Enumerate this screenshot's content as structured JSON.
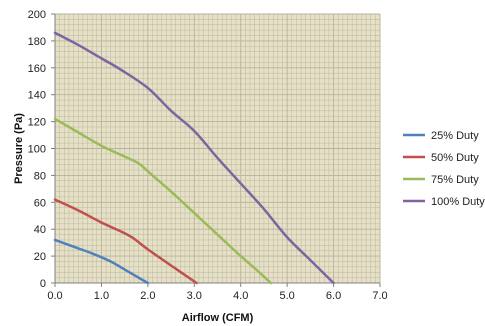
{
  "chart_data": {
    "type": "line",
    "title": "",
    "xlabel": "Airflow (CFM)",
    "ylabel": "Pressure (Pa)",
    "xlim": [
      0,
      7
    ],
    "ylim": [
      0,
      200
    ],
    "x_ticks": [
      "0.0",
      "1.0",
      "2.0",
      "3.0",
      "4.0",
      "5.0",
      "6.0",
      "7.0"
    ],
    "y_ticks": [
      "0",
      "20",
      "40",
      "60",
      "80",
      "100",
      "120",
      "140",
      "160",
      "180",
      "200"
    ],
    "grid": true,
    "plot_background": "#e6e1c6",
    "grid_color": "#b7b29c",
    "legend_position": "right",
    "series": [
      {
        "name": "25% Duty",
        "color": "#4f81bd",
        "points": [
          [
            0,
            32
          ],
          [
            0.4,
            27
          ],
          [
            0.8,
            22
          ],
          [
            1.2,
            16
          ],
          [
            1.5,
            10
          ],
          [
            1.8,
            4
          ],
          [
            2.0,
            0
          ]
        ]
      },
      {
        "name": "50% Duty",
        "color": "#c0504d",
        "points": [
          [
            0,
            62
          ],
          [
            0.5,
            54
          ],
          [
            1.0,
            45
          ],
          [
            1.5,
            37
          ],
          [
            1.7,
            33
          ],
          [
            2.0,
            25
          ],
          [
            2.5,
            13
          ],
          [
            3.05,
            0
          ]
        ]
      },
      {
        "name": "75% Duty",
        "color": "#9bbb59",
        "points": [
          [
            0,
            122
          ],
          [
            0.5,
            112
          ],
          [
            1.0,
            102
          ],
          [
            1.5,
            94
          ],
          [
            1.8,
            89
          ],
          [
            2.0,
            83
          ],
          [
            2.5,
            68
          ],
          [
            3.0,
            52
          ],
          [
            3.5,
            36
          ],
          [
            4.0,
            20
          ],
          [
            4.3,
            11
          ],
          [
            4.65,
            0
          ]
        ]
      },
      {
        "name": "100% Duty",
        "color": "#8064a2",
        "points": [
          [
            0,
            186
          ],
          [
            0.5,
            177
          ],
          [
            1.0,
            167
          ],
          [
            1.4,
            159
          ],
          [
            2.0,
            145
          ],
          [
            2.5,
            128
          ],
          [
            3.0,
            113
          ],
          [
            3.5,
            93
          ],
          [
            4.0,
            74
          ],
          [
            4.5,
            55
          ],
          [
            5.0,
            34
          ],
          [
            5.5,
            17
          ],
          [
            6.0,
            0
          ]
        ]
      }
    ]
  }
}
